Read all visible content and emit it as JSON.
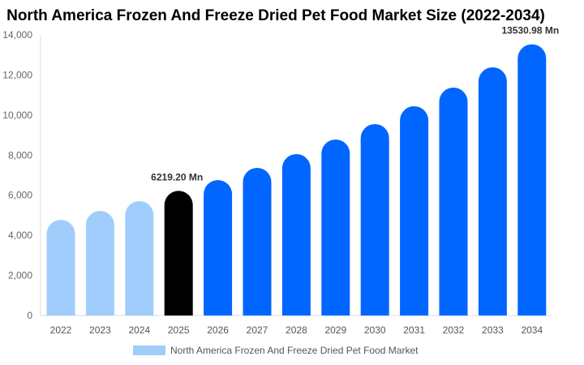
{
  "chart_data": {
    "type": "bar",
    "title": "North America Frozen And Freeze Dried Pet Food Market Size (2022-2034)",
    "categories": [
      "2022",
      "2023",
      "2024",
      "2025",
      "2026",
      "2027",
      "2028",
      "2029",
      "2030",
      "2031",
      "2032",
      "2033",
      "2034"
    ],
    "series": [
      {
        "name": "North America Frozen And Freeze Dried Pet Food Market",
        "values": [
          4775,
          5220,
          5706,
          6219.2,
          6758,
          7365,
          8053,
          8782,
          9551,
          10441,
          11372,
          12384,
          13530.98
        ]
      }
    ],
    "bar_colors": [
      "#a0cdfc",
      "#a0cdfc",
      "#a0cdfc",
      "#000000",
      "#0066ff",
      "#0066ff",
      "#0066ff",
      "#0066ff",
      "#0066ff",
      "#0066ff",
      "#0066ff",
      "#0066ff",
      "#0066ff"
    ],
    "data_labels": [
      {
        "index": 3,
        "text": "6219.20 Mn"
      },
      {
        "index": 12,
        "text": "13530.98 Mn"
      }
    ],
    "ylim": [
      0,
      14000
    ],
    "yticks": [
      "0",
      "2,000",
      "4,000",
      "6,000",
      "8,000",
      "10,000",
      "12,000",
      "14,000"
    ],
    "xlabel": "",
    "ylabel": "",
    "grid": false,
    "legend": "bottom"
  }
}
